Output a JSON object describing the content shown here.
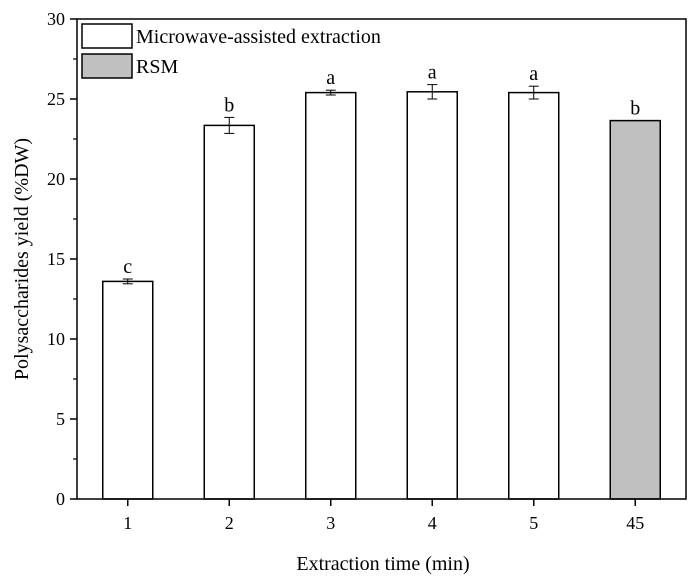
{
  "chart_data": {
    "type": "bar",
    "xlabel": "Extraction time (min)",
    "ylabel": "Polysaccharides yield (%DW)",
    "ylim": [
      0,
      30
    ],
    "yticks": [
      0,
      5,
      10,
      15,
      20,
      25,
      30
    ],
    "grid": false,
    "legend_position": "top-left",
    "categories": [
      "1",
      "2",
      "3",
      "4",
      "5",
      "45"
    ],
    "bars": [
      {
        "category": "1",
        "value": 13.6,
        "error": 0.15,
        "label": "c",
        "series": "mae"
      },
      {
        "category": "2",
        "value": 23.35,
        "error": 0.5,
        "label": "b",
        "series": "mae"
      },
      {
        "category": "3",
        "value": 25.4,
        "error": 0.15,
        "label": "a",
        "series": "mae"
      },
      {
        "category": "4",
        "value": 25.45,
        "error": 0.45,
        "label": "a",
        "series": "mae"
      },
      {
        "category": "5",
        "value": 25.4,
        "error": 0.4,
        "label": "a",
        "series": "mae"
      },
      {
        "category": "45",
        "value": 23.65,
        "error": 0,
        "label": "b",
        "series": "rsm"
      }
    ],
    "series": [
      {
        "key": "mae",
        "name": "Microwave-assisted extraction",
        "color": "#ffffff"
      },
      {
        "key": "rsm",
        "name": "RSM",
        "color": "#c0c0c0"
      }
    ]
  }
}
